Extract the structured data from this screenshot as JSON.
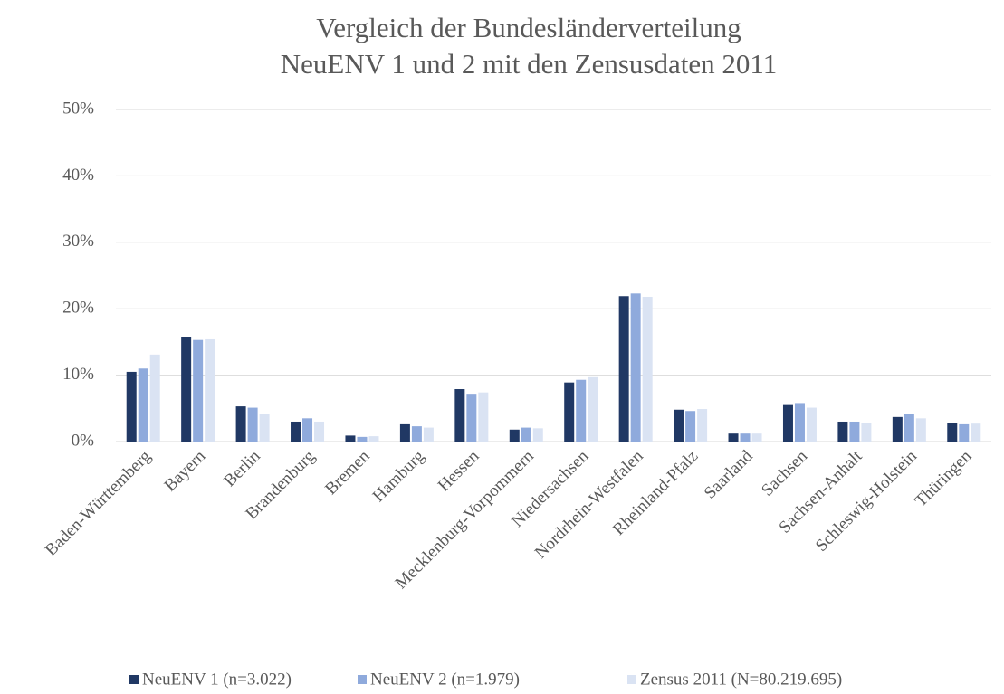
{
  "chart_data": {
    "type": "bar",
    "title": [
      "Vergleich  der Bundesländerverteilung",
      "NeuENV 1 und 2 mit den Zensusdaten  2011"
    ],
    "categories": [
      "Baden-Württemberg",
      "Bayern",
      "Berlin",
      "Brandenburg",
      "Bremen",
      "Hamburg",
      "Hessen",
      "Mecklenburg-Vorpommern",
      "Niedersachsen",
      "Nordrhein-Westfalen",
      "Rheinland-Pfalz",
      "Saarland",
      "Sachsen",
      "Sachsen-Anhalt",
      "Schleswig-Holstein",
      "Thüringen"
    ],
    "series": [
      {
        "name": "NeuENV 1  (n=3.022)",
        "color": "#203864",
        "values": [
          10.5,
          15.8,
          5.3,
          3.0,
          0.9,
          2.6,
          7.9,
          1.8,
          8.9,
          21.9,
          4.8,
          1.2,
          5.5,
          3.0,
          3.7,
          2.8
        ]
      },
      {
        "name": "NeuENV 2 (n=1.979)",
        "color": "#8faadc",
        "values": [
          11.0,
          15.3,
          5.1,
          3.5,
          0.7,
          2.3,
          7.2,
          2.1,
          9.3,
          22.3,
          4.6,
          1.2,
          5.8,
          3.0,
          4.2,
          2.6
        ]
      },
      {
        "name": "Zensus 2011 (N=80.219.695)",
        "color": "#dae3f3",
        "values": [
          13.1,
          15.4,
          4.1,
          3.0,
          0.8,
          2.1,
          7.4,
          2.0,
          9.7,
          21.8,
          4.9,
          1.2,
          5.1,
          2.8,
          3.5,
          2.7
        ]
      }
    ],
    "ylim": [
      0,
      50
    ],
    "yticks": [
      {
        "value": 0,
        "label": "0%"
      },
      {
        "value": 10,
        "label": "10%"
      },
      {
        "value": 20,
        "label": "20%"
      },
      {
        "value": 30,
        "label": "30%"
      },
      {
        "value": 40,
        "label": "40%"
      },
      {
        "value": 50,
        "label": "50%"
      }
    ],
    "grid": true,
    "legend": "bottom"
  }
}
